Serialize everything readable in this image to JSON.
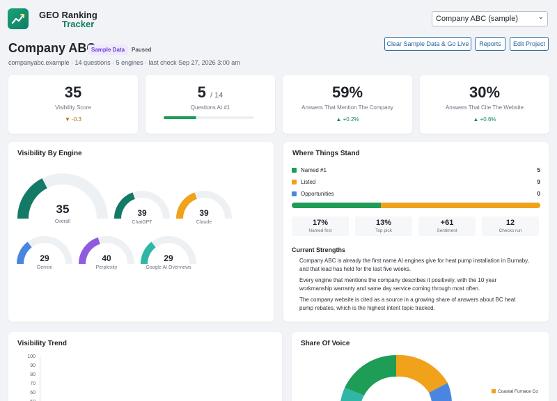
{
  "brand": {
    "line1": "GEO Ranking",
    "line2": "Tracker",
    "accent": "#0e7c63"
  },
  "project_select": {
    "value": "Company ABC (sample)"
  },
  "header": {
    "title": "Company ABC",
    "badge_sample": "Sample Data",
    "badge_paused": "Paused",
    "meta": "companyabc.example · 14 questions · 5 engines · last check Sep 27, 2026 3:00 am"
  },
  "actions": {
    "clear_label": "Clear Sample Data & Go Live",
    "reports_label": "Reports",
    "edit_label": "Edit Project"
  },
  "stats": {
    "visibility": {
      "value": "35",
      "label": "Visibility Score",
      "delta": "▼ -0.3"
    },
    "questions": {
      "value": "5",
      "of": "/ 14",
      "label": "Questions At #1",
      "progress_fraction": 0.36
    },
    "mention": {
      "value": "59%",
      "label": "Answers That Mention The Company",
      "delta": "▲ +0.2%"
    },
    "cite": {
      "value": "30%",
      "label": "Answers That Cite The Website",
      "delta": "▲ +0.6%"
    }
  },
  "engines": {
    "title": "Visibility By Engine",
    "overall": {
      "value": "35",
      "label": "Overall",
      "score": 35,
      "color": "#137a66"
    },
    "items": [
      {
        "value": "39",
        "label": "ChatGPT",
        "score": 39,
        "color": "#137a66"
      },
      {
        "value": "39",
        "label": "Claude",
        "score": 39,
        "color": "#f0a21b"
      },
      {
        "value": "29",
        "label": "Gemini",
        "score": 29,
        "color": "#4a86e0"
      },
      {
        "value": "40",
        "label": "Perplexity",
        "score": 40,
        "color": "#8f5ce0"
      },
      {
        "value": "29",
        "label": "Google AI Overviews",
        "score": 29,
        "color": "#2fb6a5"
      }
    ]
  },
  "standing": {
    "title": "Where Things Stand",
    "rows": [
      {
        "label": "Named #1",
        "value": "5",
        "count": 5,
        "color": "#1e9d57"
      },
      {
        "label": "Listed",
        "value": "9",
        "count": 9,
        "color": "#f0a21b"
      },
      {
        "label": "Opportunities",
        "value": "0",
        "count": 0,
        "color": "#4a86e0"
      }
    ],
    "minis": [
      {
        "value": "17%",
        "label": "Named first"
      },
      {
        "value": "13%",
        "label": "Top pick"
      },
      {
        "value": "+61",
        "label": "Sentiment"
      },
      {
        "value": "12",
        "label": "Checks run"
      }
    ],
    "strengths_title": "Current Strengths",
    "strengths": [
      "Company ABC is already the first name AI engines give for heat pump installation in Burnaby, and that lead has held for the last five weeks.",
      "Every engine that mentions the company describes it positively, with the 10 year workmanship warranty and same day service coming through most often.",
      "The company website is cited as a source in a growing share of answers about BC heat pump rebates, which is the highest intent topic tracked."
    ]
  },
  "trend": {
    "title": "Visibility Trend",
    "y_ticks": [
      "100",
      "90",
      "80",
      "70",
      "60",
      "50"
    ]
  },
  "sov": {
    "title": "Share Of Voice",
    "legend": [
      {
        "label": "Coastal Furnace Co",
        "color": "#f0a21b"
      }
    ]
  }
}
